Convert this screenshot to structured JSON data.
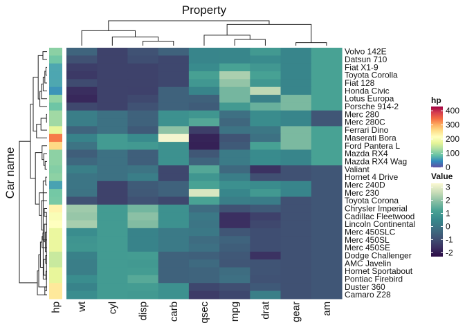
{
  "chart_data": {
    "type": "heatmap",
    "title": "Property",
    "ylabel": "Car name",
    "annotation_label": "hp",
    "columns": [
      "wt",
      "cyl",
      "disp",
      "carb",
      "qsec",
      "mpg",
      "drat",
      "gear",
      "am"
    ],
    "rows": [
      "Volvo 142E",
      "Datsun 710",
      "Fiat X1-9",
      "Toyota Corolla",
      "Fiat 128",
      "Honda Civic",
      "Lotus Europa",
      "Porsche 914-2",
      "Merc 280",
      "Merc 280C",
      "Ferrari Dino",
      "Maserati Bora",
      "Ford Pantera L",
      "Mazda RX4",
      "Mazda RX4 Wag",
      "Valiant",
      "Hornet 4 Drive",
      "Merc 240D",
      "Merc 230",
      "Toyota Corona",
      "Chrysler Imperial",
      "Cadillac Fleetwood",
      "Lincoln Continental",
      "Merc 450SLC",
      "Merc 450SL",
      "Merc 450SE",
      "Dodge Challenger",
      "AMC Javelin",
      "Hornet Sportabout",
      "Pontiac Firebird",
      "Duster 360",
      "Camaro Z28"
    ],
    "hp": [
      109,
      93,
      66,
      65,
      66,
      52,
      113,
      91,
      123,
      123,
      175,
      335,
      264,
      110,
      110,
      105,
      110,
      62,
      95,
      97,
      230,
      205,
      215,
      180,
      180,
      180,
      150,
      150,
      175,
      175,
      245,
      245
    ],
    "values": [
      [
        -0.45,
        -1.22,
        -0.89,
        -0.5,
        0.43,
        0.45,
        0.96,
        0.42,
        1.19
      ],
      [
        -0.92,
        -1.22,
        -0.99,
        -1.12,
        0.43,
        0.45,
        0.57,
        0.42,
        1.19
      ],
      [
        -1.31,
        -1.22,
        -1.22,
        -1.12,
        0.59,
        1.2,
        0.9,
        0.42,
        1.19
      ],
      [
        -1.41,
        -1.22,
        -1.23,
        -1.12,
        1.15,
        2.29,
        1.17,
        0.42,
        1.19
      ],
      [
        -1.04,
        -1.22,
        -1.23,
        -1.12,
        0.91,
        2.04,
        0.9,
        0.42,
        1.19
      ],
      [
        -1.64,
        -1.22,
        -1.25,
        -0.5,
        0.38,
        1.71,
        2.49,
        0.42,
        1.19
      ],
      [
        -1.74,
        -1.22,
        -1.09,
        -0.5,
        -0.53,
        1.71,
        0.32,
        1.78,
        1.19
      ],
      [
        -1.11,
        -1.22,
        -0.89,
        -0.5,
        -0.64,
        0.98,
        1.56,
        1.78,
        1.19
      ],
      [
        0.23,
        -0.11,
        -0.51,
        0.74,
        0.88,
        -0.15,
        0.61,
        0.42,
        -0.81
      ],
      [
        0.23,
        -0.11,
        -0.51,
        0.74,
        1.33,
        -0.38,
        0.61,
        0.42,
        -0.81
      ],
      [
        -0.45,
        -0.11,
        -0.69,
        1.98,
        -1.31,
        -0.06,
        0.04,
        1.78,
        1.19
      ],
      [
        0.36,
        1.01,
        0.57,
        3.21,
        -1.82,
        -0.84,
        -0.11,
        1.78,
        1.19
      ],
      [
        -0.05,
        1.01,
        0.97,
        0.74,
        -1.87,
        -0.71,
        1.17,
        1.78,
        1.19
      ],
      [
        -0.61,
        -0.11,
        -0.57,
        0.74,
        -0.78,
        0.15,
        0.57,
        0.42,
        1.19
      ],
      [
        -0.35,
        -0.11,
        -0.57,
        0.74,
        -0.46,
        0.15,
        0.57,
        0.42,
        1.19
      ],
      [
        0.25,
        -0.11,
        -0.05,
        -1.12,
        1.33,
        -0.33,
        -1.56,
        -0.93,
        -0.81
      ],
      [
        -0.0,
        -0.11,
        0.22,
        -1.12,
        0.89,
        0.22,
        -0.97,
        -0.93,
        -0.81
      ],
      [
        -0.02,
        -1.22,
        -0.68,
        -0.5,
        1.2,
        0.72,
        0.61,
        0.42,
        -0.81
      ],
      [
        -0.06,
        -1.22,
        -0.73,
        -0.5,
        2.83,
        0.45,
        0.96,
        0.42,
        -0.81
      ],
      [
        -0.91,
        -1.22,
        -0.9,
        -1.12,
        1.21,
        0.23,
        0.19,
        -0.93,
        -0.81
      ],
      [
        2.17,
        1.01,
        1.69,
        0.74,
        -0.24,
        -0.89,
        -0.69,
        -0.93,
        -0.81
      ],
      [
        2.08,
        1.01,
        1.95,
        0.74,
        0.07,
        -1.61,
        -1.25,
        -0.93,
        -0.81
      ],
      [
        2.26,
        1.01,
        1.85,
        0.74,
        -0.02,
        -1.61,
        -1.11,
        -0.93,
        -0.81
      ],
      [
        0.64,
        1.01,
        0.36,
        0.12,
        0.08,
        -0.81,
        -0.98,
        -0.93,
        -0.81
      ],
      [
        0.82,
        1.01,
        0.36,
        0.12,
        -0.25,
        -0.47,
        -0.98,
        -0.93,
        -0.81
      ],
      [
        0.87,
        1.01,
        0.36,
        0.12,
        -0.14,
        -0.61,
        -0.98,
        -0.93,
        -0.81
      ],
      [
        0.31,
        1.01,
        1.03,
        -0.5,
        -0.55,
        -0.76,
        -1.56,
        -0.93,
        -0.81
      ],
      [
        0.22,
        1.01,
        0.97,
        -0.5,
        -0.31,
        -0.81,
        -0.84,
        -0.93,
        -0.81
      ],
      [
        0.23,
        1.01,
        1.04,
        -0.5,
        -0.46,
        -0.23,
        -0.84,
        -0.93,
        -0.81
      ],
      [
        0.64,
        1.01,
        1.37,
        -0.5,
        -0.45,
        -0.15,
        -0.89,
        -0.93,
        -0.81
      ],
      [
        0.36,
        1.01,
        1.04,
        0.74,
        -1.12,
        -0.96,
        -0.72,
        -0.93,
        -0.81
      ],
      [
        0.64,
        1.01,
        0.97,
        0.74,
        -1.37,
        -1.13,
        0.25,
        -0.93,
        -0.81
      ]
    ],
    "legend_hp": {
      "title": "hp",
      "ticks": [
        0,
        100,
        200,
        300,
        400
      ],
      "range": [
        0,
        430
      ]
    },
    "legend_value": {
      "title": "Value",
      "ticks": [
        -2,
        -1,
        0,
        1,
        2,
        3
      ],
      "range": [
        -2.3,
        3.3
      ]
    },
    "colors": {
      "hp_scale": [
        "#5e4fa2",
        "#3288bd",
        "#66c2a5",
        "#abdda4",
        "#e6f598",
        "#ffffbf",
        "#fee08b",
        "#fdae61",
        "#f46d43",
        "#d53e4f",
        "#9e0142"
      ],
      "value_scale": [
        "#2b0a45",
        "#3b3061",
        "#405274",
        "#3e6e82",
        "#37888c",
        "#48a294",
        "#86bea3",
        "#c8ddb8",
        "#fbf8d2"
      ]
    },
    "col_dendrogram": [
      [
        5,
        6,
        0.25
      ],
      [
        4,
        9,
        0.42
      ],
      [
        7,
        8,
        0.12
      ],
      [
        2,
        3,
        0.18
      ],
      [
        1,
        12,
        0.35
      ],
      [
        0,
        13,
        0.6
      ],
      [
        11,
        10,
        0.85
      ],
      [
        15,
        14,
        1.0
      ]
    ],
    "row_dendrogram": [
      [
        16,
        17,
        0.05
      ],
      [
        20,
        21,
        0.1
      ],
      [
        30,
        31,
        0.08
      ],
      [
        29,
        32,
        0.14
      ],
      [
        35,
        19,
        0.2
      ],
      [
        18,
        36,
        0.28
      ],
      [
        14,
        15,
        0.07
      ],
      [
        38,
        13,
        0.12
      ],
      [
        12,
        39,
        0.18
      ],
      [
        2,
        3,
        0.04
      ],
      [
        41,
        4,
        0.08
      ],
      [
        42,
        5,
        0.14
      ],
      [
        8,
        9,
        0.02
      ],
      [
        44,
        10,
        0.22
      ],
      [
        43,
        6,
        0.2
      ],
      [
        46,
        7,
        0.26
      ],
      [
        0,
        1,
        0.15
      ],
      [
        48,
        47,
        0.32
      ],
      [
        45,
        11,
        0.38
      ],
      [
        49,
        50,
        0.5
      ],
      [
        40,
        37,
        0.42
      ],
      [
        51,
        52,
        0.6
      ],
      [
        33,
        34,
        0.02
      ],
      [
        54,
        23,
        0.06
      ],
      [
        55,
        22,
        0.1
      ],
      [
        56,
        24,
        0.15
      ],
      [
        57,
        25,
        0.18
      ],
      [
        26,
        27,
        0.05
      ],
      [
        28,
        29,
        0.04
      ],
      [
        59,
        60,
        0.12
      ],
      [
        58,
        61,
        0.24
      ],
      [
        62,
        30,
        0.3
      ],
      [
        63,
        31,
        0.35
      ],
      [
        53,
        64,
        1.0
      ]
    ]
  }
}
